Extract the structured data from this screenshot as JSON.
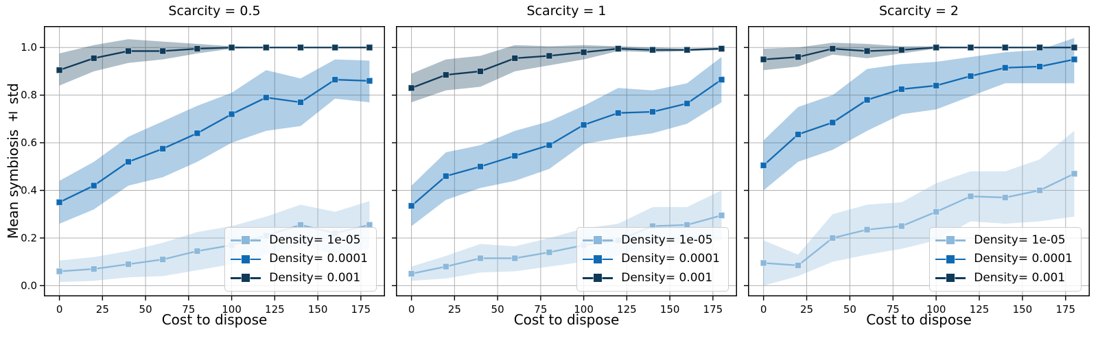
{
  "figure": {
    "ylabel": "Mean symbiosis ± std",
    "background": "#ffffff",
    "grid_color": "#b0b0b0",
    "spine_color": "#000000",
    "tick_color": "#000000"
  },
  "legend": {
    "position": "lower right",
    "items": [
      {
        "label": "Density= 1e-05",
        "color": "#8cb8da"
      },
      {
        "label": "Density= 0.0001",
        "color": "#0f6ab3"
      },
      {
        "label": "Density= 0.001",
        "color": "#0f3a58"
      }
    ]
  },
  "chart_data": [
    {
      "type": "line",
      "title": "Scarcity = 0.5",
      "xlabel": "Cost to dispose",
      "ylabel": "Mean symbiosis ± std",
      "x": [
        0,
        20,
        40,
        60,
        80,
        100,
        120,
        140,
        160,
        180
      ],
      "xlim": [
        -9,
        189
      ],
      "ylim": [
        -0.045,
        1.09
      ],
      "xticks": [
        0,
        25,
        50,
        75,
        100,
        125,
        150,
        175
      ],
      "xticklabels": [
        "0",
        "25",
        "50",
        "75",
        "100",
        "125",
        "150",
        "175"
      ],
      "yticks": [
        0.0,
        0.2,
        0.4,
        0.6,
        0.8,
        1.0
      ],
      "yticklabels": [
        "0.0",
        "0.2",
        "0.4",
        "0.6",
        "0.8",
        "1.0"
      ],
      "show_ytick_labels": true,
      "grid": true,
      "series": [
        {
          "name": "Density= 1e-05",
          "color": "#8cb8da",
          "values": [
            0.06,
            0.07,
            0.09,
            0.11,
            0.145,
            0.17,
            0.21,
            0.255,
            0.22,
            0.255
          ],
          "lower": [
            0.015,
            0.02,
            0.035,
            0.04,
            0.065,
            0.09,
            0.13,
            0.17,
            0.13,
            0.155
          ],
          "upper": [
            0.105,
            0.12,
            0.145,
            0.18,
            0.225,
            0.25,
            0.29,
            0.34,
            0.31,
            0.355
          ]
        },
        {
          "name": "Density= 0.0001",
          "color": "#0f6ab3",
          "values": [
            0.35,
            0.42,
            0.52,
            0.575,
            0.64,
            0.72,
            0.79,
            0.77,
            0.865,
            0.86
          ],
          "lower": [
            0.26,
            0.32,
            0.42,
            0.455,
            0.52,
            0.6,
            0.65,
            0.67,
            0.785,
            0.77
          ],
          "upper": [
            0.44,
            0.52,
            0.625,
            0.69,
            0.755,
            0.81,
            0.905,
            0.87,
            0.95,
            0.945
          ]
        },
        {
          "name": "Density= 0.001",
          "color": "#0f3a58",
          "values": [
            0.905,
            0.955,
            0.985,
            0.985,
            0.995,
            1.0,
            1.0,
            1.0,
            1.0,
            1.0
          ],
          "lower": [
            0.84,
            0.9,
            0.935,
            0.95,
            0.975,
            0.995,
            1.0,
            1.0,
            1.0,
            1.0
          ],
          "upper": [
            0.975,
            1.01,
            1.035,
            1.025,
            1.015,
            1.005,
            1.0,
            1.0,
            1.0,
            1.0
          ]
        }
      ]
    },
    {
      "type": "line",
      "title": "Scarcity = 1",
      "xlabel": "Cost to dispose",
      "ylabel": "Mean symbiosis ± std",
      "x": [
        0,
        20,
        40,
        60,
        80,
        100,
        120,
        140,
        160,
        180
      ],
      "xlim": [
        -9,
        189
      ],
      "ylim": [
        -0.045,
        1.09
      ],
      "xticks": [
        0,
        25,
        50,
        75,
        100,
        125,
        150,
        175
      ],
      "xticklabels": [
        "0",
        "25",
        "50",
        "75",
        "100",
        "125",
        "150",
        "175"
      ],
      "yticks": [
        0.0,
        0.2,
        0.4,
        0.6,
        0.8,
        1.0
      ],
      "yticklabels": [
        "0.0",
        "0.2",
        "0.4",
        "0.6",
        "0.8",
        "1.0"
      ],
      "show_ytick_labels": false,
      "grid": true,
      "series": [
        {
          "name": "Density= 1e-05",
          "color": "#8cb8da",
          "values": [
            0.05,
            0.08,
            0.115,
            0.115,
            0.14,
            0.17,
            0.19,
            0.25,
            0.255,
            0.295
          ],
          "lower": [
            0.02,
            0.03,
            0.055,
            0.06,
            0.08,
            0.1,
            0.125,
            0.17,
            0.18,
            0.19
          ],
          "upper": [
            0.08,
            0.125,
            0.175,
            0.165,
            0.2,
            0.24,
            0.26,
            0.33,
            0.33,
            0.4
          ]
        },
        {
          "name": "Density= 0.0001",
          "color": "#0f6ab3",
          "values": [
            0.335,
            0.46,
            0.5,
            0.545,
            0.59,
            0.675,
            0.725,
            0.73,
            0.765,
            0.865
          ],
          "lower": [
            0.25,
            0.36,
            0.41,
            0.44,
            0.49,
            0.595,
            0.62,
            0.64,
            0.68,
            0.77
          ],
          "upper": [
            0.42,
            0.56,
            0.59,
            0.65,
            0.69,
            0.755,
            0.83,
            0.82,
            0.85,
            0.96
          ]
        },
        {
          "name": "Density= 0.001",
          "color": "#0f3a58",
          "values": [
            0.83,
            0.885,
            0.9,
            0.955,
            0.965,
            0.98,
            0.995,
            0.99,
            0.99,
            0.995
          ],
          "lower": [
            0.77,
            0.82,
            0.835,
            0.9,
            0.925,
            0.95,
            0.985,
            0.98,
            0.985,
            0.99
          ],
          "upper": [
            0.89,
            0.95,
            0.965,
            1.01,
            1.005,
            1.01,
            1.005,
            1.0,
            0.995,
            1.0
          ]
        }
      ]
    },
    {
      "type": "line",
      "title": "Scarcity = 2",
      "xlabel": "Cost to dispose",
      "ylabel": "Mean symbiosis ± std",
      "x": [
        0,
        20,
        40,
        60,
        80,
        100,
        120,
        140,
        160,
        180
      ],
      "xlim": [
        -9,
        189
      ],
      "ylim": [
        -0.045,
        1.09
      ],
      "xticks": [
        0,
        25,
        50,
        75,
        100,
        125,
        150,
        175
      ],
      "xticklabels": [
        "0",
        "25",
        "50",
        "75",
        "100",
        "125",
        "150",
        "175"
      ],
      "yticks": [
        0.0,
        0.2,
        0.4,
        0.6,
        0.8,
        1.0
      ],
      "yticklabels": [
        "0.0",
        "0.2",
        "0.4",
        "0.6",
        "0.8",
        "1.0"
      ],
      "show_ytick_labels": false,
      "grid": true,
      "series": [
        {
          "name": "Density= 1e-05",
          "color": "#8cb8da",
          "values": [
            0.095,
            0.085,
            0.2,
            0.235,
            0.25,
            0.31,
            0.375,
            0.37,
            0.4,
            0.47
          ],
          "lower": [
            0.0,
            0.04,
            0.1,
            0.13,
            0.155,
            0.19,
            0.27,
            0.26,
            0.27,
            0.29
          ],
          "upper": [
            0.19,
            0.13,
            0.3,
            0.34,
            0.35,
            0.43,
            0.48,
            0.48,
            0.53,
            0.65
          ]
        },
        {
          "name": "Density= 0.0001",
          "color": "#0f6ab3",
          "values": [
            0.505,
            0.635,
            0.685,
            0.78,
            0.825,
            0.84,
            0.88,
            0.915,
            0.92,
            0.95
          ],
          "lower": [
            0.4,
            0.52,
            0.57,
            0.65,
            0.72,
            0.74,
            0.795,
            0.85,
            0.85,
            0.85
          ],
          "upper": [
            0.61,
            0.75,
            0.8,
            0.91,
            0.93,
            0.94,
            0.96,
            0.98,
            0.99,
            1.04
          ]
        },
        {
          "name": "Density= 0.001",
          "color": "#0f3a58",
          "values": [
            0.95,
            0.96,
            0.995,
            0.985,
            0.99,
            1.0,
            1.0,
            1.0,
            1.0,
            1.0
          ],
          "lower": [
            0.905,
            0.92,
            0.97,
            0.955,
            0.975,
            0.995,
            1.0,
            1.0,
            1.0,
            1.0
          ],
          "upper": [
            0.995,
            1.0,
            1.02,
            1.015,
            1.005,
            1.005,
            1.0,
            1.0,
            1.0,
            1.0
          ]
        }
      ]
    }
  ]
}
